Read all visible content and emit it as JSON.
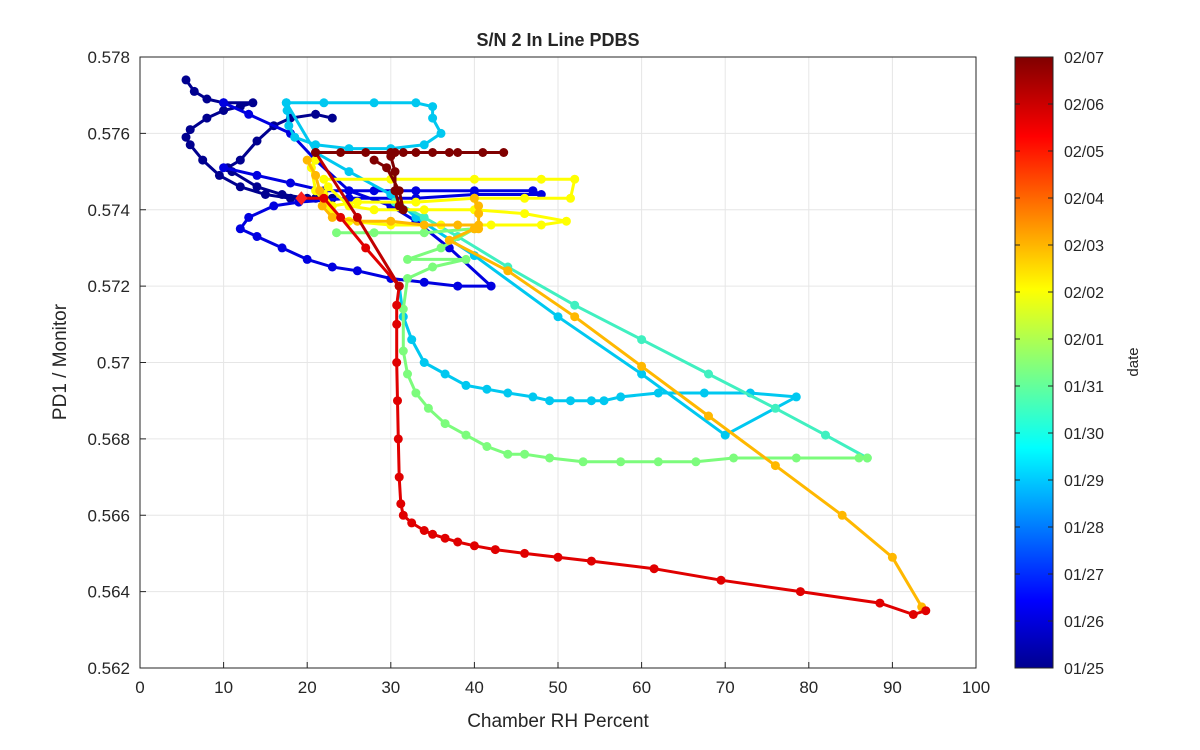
{
  "chart_data": {
    "type": "line",
    "title": "S/N 2 In Line PDBS",
    "xlabel": "Chamber RH Percent",
    "ylabel": "PD1 / Monitor",
    "xlim": [
      0,
      100
    ],
    "ylim": [
      0.562,
      0.578
    ],
    "xticks": [
      0,
      10,
      20,
      30,
      40,
      50,
      60,
      70,
      80,
      90,
      100
    ],
    "xtick_labels": [
      "0",
      "10",
      "20",
      "30",
      "40",
      "50",
      "60",
      "70",
      "80",
      "90",
      "100"
    ],
    "yticks": [
      0.562,
      0.564,
      0.566,
      0.568,
      0.57,
      0.572,
      0.574,
      0.576,
      0.578
    ],
    "ytick_labels": [
      "0.562",
      "0.564",
      "0.566",
      "0.568",
      "0.57",
      "0.572",
      "0.574",
      "0.576",
      "0.578"
    ],
    "grid": true,
    "colormap": "jet",
    "colorbar": {
      "label": "date",
      "tick_labels": [
        "01/25",
        "01/26",
        "01/27",
        "01/28",
        "01/29",
        "01/30",
        "01/31",
        "02/01",
        "02/02",
        "02/03",
        "02/04",
        "02/05",
        "02/06",
        "02/07"
      ]
    },
    "series": [
      {
        "color": "#00008F",
        "values": [
          [
            5.5,
            0.5774
          ],
          [
            6.5,
            0.5771
          ],
          [
            8,
            0.5769
          ],
          [
            10,
            0.5768
          ],
          [
            13.5,
            0.5768
          ],
          [
            12,
            0.5767
          ],
          [
            10,
            0.5766
          ],
          [
            8,
            0.5764
          ],
          [
            6,
            0.5761
          ],
          [
            5.5,
            0.5759
          ],
          [
            6,
            0.5757
          ],
          [
            7.5,
            0.5753
          ],
          [
            9.5,
            0.5749
          ],
          [
            12,
            0.5746
          ],
          [
            15,
            0.5744
          ],
          [
            18,
            0.5743
          ],
          [
            21,
            0.5743
          ],
          [
            23,
            0.5743
          ],
          [
            20,
            0.5743
          ],
          [
            17,
            0.5744
          ],
          [
            14,
            0.5746
          ],
          [
            11,
            0.575
          ],
          [
            10.5,
            0.5751
          ],
          [
            12,
            0.5753
          ],
          [
            14,
            0.5758
          ],
          [
            16,
            0.5762
          ],
          [
            18,
            0.5764
          ],
          [
            21,
            0.5765
          ],
          [
            23,
            0.5764
          ]
        ]
      },
      {
        "color": "#0000E0",
        "values": [
          [
            10,
            0.5751
          ],
          [
            14,
            0.5749
          ],
          [
            18,
            0.5747
          ],
          [
            22,
            0.5745
          ],
          [
            28,
            0.5745
          ],
          [
            33,
            0.5745
          ],
          [
            40,
            0.5745
          ],
          [
            47,
            0.5745
          ],
          [
            48,
            0.5744
          ],
          [
            40,
            0.5744
          ],
          [
            33,
            0.5743
          ],
          [
            25,
            0.5743
          ],
          [
            19,
            0.5742
          ],
          [
            16,
            0.5741
          ],
          [
            13,
            0.5738
          ],
          [
            12,
            0.5735
          ],
          [
            14,
            0.5733
          ],
          [
            17,
            0.573
          ],
          [
            20,
            0.5727
          ],
          [
            23,
            0.5725
          ],
          [
            26,
            0.5724
          ],
          [
            30,
            0.5722
          ],
          [
            34,
            0.5721
          ],
          [
            38,
            0.572
          ],
          [
            42,
            0.572
          ],
          [
            37,
            0.573
          ],
          [
            33,
            0.5737
          ],
          [
            30,
            0.5741
          ],
          [
            25,
            0.5745
          ],
          [
            21,
            0.5753
          ],
          [
            18,
            0.576
          ],
          [
            13,
            0.5765
          ],
          [
            10,
            0.5768
          ]
        ]
      },
      {
        "color": "#00C8F0",
        "values": [
          [
            17.5,
            0.5768
          ],
          [
            22,
            0.5768
          ],
          [
            28,
            0.5768
          ],
          [
            33,
            0.5768
          ],
          [
            35,
            0.5767
          ],
          [
            35,
            0.5764
          ],
          [
            36,
            0.576
          ],
          [
            34,
            0.5757
          ],
          [
            30,
            0.5756
          ],
          [
            25,
            0.5756
          ],
          [
            21,
            0.5757
          ],
          [
            18.5,
            0.5759
          ],
          [
            17.8,
            0.5762
          ],
          [
            17.6,
            0.5766
          ],
          [
            17.5,
            0.5768
          ],
          [
            21,
            0.5755
          ],
          [
            25,
            0.575
          ],
          [
            30,
            0.5744
          ],
          [
            33,
            0.5738
          ],
          [
            40,
            0.5728
          ],
          [
            50,
            0.5712
          ],
          [
            60,
            0.5697
          ],
          [
            70,
            0.5681
          ],
          [
            78.5,
            0.5691
          ],
          [
            73,
            0.5692
          ],
          [
            67.5,
            0.5692
          ],
          [
            62,
            0.5692
          ],
          [
            57.5,
            0.5691
          ],
          [
            55.5,
            0.569
          ],
          [
            54,
            0.569
          ],
          [
            51.5,
            0.569
          ],
          [
            49,
            0.569
          ],
          [
            47,
            0.5691
          ],
          [
            44,
            0.5692
          ],
          [
            41.5,
            0.5693
          ],
          [
            39,
            0.5694
          ],
          [
            36.5,
            0.5697
          ],
          [
            34,
            0.57
          ],
          [
            32.5,
            0.5706
          ],
          [
            31.5,
            0.5712
          ],
          [
            31,
            0.572
          ]
        ]
      },
      {
        "color": "#40F0C0",
        "values": [
          [
            30.5,
            0.5742
          ],
          [
            34,
            0.5738
          ],
          [
            38,
            0.5733
          ],
          [
            44,
            0.5725
          ],
          [
            52,
            0.5715
          ],
          [
            60,
            0.5706
          ],
          [
            68,
            0.5697
          ],
          [
            76,
            0.5688
          ],
          [
            82,
            0.5681
          ],
          [
            87,
            0.5675
          ]
        ]
      },
      {
        "color": "#7CFC7C",
        "values": [
          [
            23.5,
            0.5734
          ],
          [
            28,
            0.5734
          ],
          [
            34,
            0.5734
          ],
          [
            40,
            0.5735
          ],
          [
            36,
            0.573
          ],
          [
            32,
            0.5727
          ],
          [
            39,
            0.5727
          ],
          [
            35,
            0.5725
          ],
          [
            32,
            0.5722
          ],
          [
            31.5,
            0.5714
          ],
          [
            31.5,
            0.5703
          ],
          [
            32,
            0.5697
          ],
          [
            33,
            0.5692
          ],
          [
            34.5,
            0.5688
          ],
          [
            36.5,
            0.5684
          ],
          [
            39,
            0.5681
          ],
          [
            41.5,
            0.5678
          ],
          [
            44,
            0.5676
          ],
          [
            46,
            0.5676
          ],
          [
            49,
            0.5675
          ],
          [
            53,
            0.5674
          ],
          [
            57.5,
            0.5674
          ],
          [
            62,
            0.5674
          ],
          [
            66.5,
            0.5674
          ],
          [
            71,
            0.5675
          ],
          [
            78.5,
            0.5675
          ],
          [
            86,
            0.5675
          ],
          [
            87,
            0.5675
          ]
        ]
      },
      {
        "color": "#FFFF00",
        "values": [
          [
            22,
            0.5748
          ],
          [
            30,
            0.5748
          ],
          [
            40,
            0.5748
          ],
          [
            48,
            0.5748
          ],
          [
            52,
            0.5748
          ],
          [
            51.5,
            0.5743
          ],
          [
            46,
            0.5743
          ],
          [
            40,
            0.5743
          ],
          [
            33,
            0.5742
          ],
          [
            26,
            0.5742
          ],
          [
            23,
            0.5741
          ],
          [
            22,
            0.5744
          ],
          [
            22.5,
            0.5746
          ],
          [
            25,
            0.5741
          ],
          [
            28,
            0.574
          ],
          [
            34,
            0.574
          ],
          [
            40,
            0.574
          ],
          [
            46,
            0.5739
          ],
          [
            51,
            0.5737
          ],
          [
            48,
            0.5736
          ],
          [
            42,
            0.5736
          ],
          [
            36,
            0.5736
          ],
          [
            30,
            0.5736
          ],
          [
            25,
            0.5737
          ],
          [
            23,
            0.5739
          ],
          [
            21,
            0.5745
          ],
          [
            20.5,
            0.5751
          ],
          [
            21,
            0.5753
          ]
        ]
      },
      {
        "color": "#FFB800",
        "values": [
          [
            20,
            0.5753
          ],
          [
            21,
            0.5749
          ],
          [
            21.5,
            0.5745
          ],
          [
            21.8,
            0.5741
          ],
          [
            23,
            0.5738
          ],
          [
            26,
            0.5737
          ],
          [
            30,
            0.5737
          ],
          [
            34,
            0.5736
          ],
          [
            38,
            0.5736
          ],
          [
            40.5,
            0.5736
          ],
          [
            40.5,
            0.5741
          ],
          [
            40,
            0.5743
          ],
          [
            40.5,
            0.5739
          ],
          [
            40.5,
            0.5735
          ],
          [
            40,
            0.5735
          ],
          [
            37,
            0.5732
          ],
          [
            44,
            0.5724
          ],
          [
            52,
            0.5712
          ],
          [
            60,
            0.5699
          ],
          [
            68,
            0.5686
          ],
          [
            76,
            0.5673
          ],
          [
            84,
            0.566
          ],
          [
            90,
            0.5649
          ],
          [
            93.5,
            0.5636
          ]
        ]
      },
      {
        "color": "#E00000",
        "values": [
          [
            19.3,
            0.5743
          ],
          [
            22,
            0.5743
          ],
          [
            24,
            0.5738
          ],
          [
            27,
            0.573
          ],
          [
            31,
            0.572
          ],
          [
            30.7,
            0.5715
          ],
          [
            30.7,
            0.571
          ],
          [
            30.7,
            0.57
          ],
          [
            30.8,
            0.569
          ],
          [
            30.9,
            0.568
          ],
          [
            31,
            0.567
          ],
          [
            31.2,
            0.5663
          ],
          [
            31.5,
            0.566
          ],
          [
            32.5,
            0.5658
          ],
          [
            34,
            0.5656
          ],
          [
            35,
            0.5655
          ],
          [
            36.5,
            0.5654
          ],
          [
            38,
            0.5653
          ],
          [
            40,
            0.5652
          ],
          [
            42.5,
            0.5651
          ],
          [
            46,
            0.565
          ],
          [
            50,
            0.5649
          ],
          [
            54,
            0.5648
          ],
          [
            61.5,
            0.5646
          ],
          [
            69.5,
            0.5643
          ],
          [
            79,
            0.564
          ],
          [
            88.5,
            0.5637
          ],
          [
            92.5,
            0.5634
          ],
          [
            94,
            0.5635
          ]
        ]
      },
      {
        "color": "#C00000",
        "values": [
          [
            31,
            0.572
          ],
          [
            26,
            0.5738
          ],
          [
            21,
            0.5755
          ]
        ]
      },
      {
        "color": "#800000",
        "values": [
          [
            21,
            0.5755
          ],
          [
            24,
            0.5755
          ],
          [
            27,
            0.5755
          ],
          [
            30,
            0.5755
          ],
          [
            33,
            0.5755
          ],
          [
            37,
            0.5755
          ],
          [
            41,
            0.5755
          ],
          [
            43.5,
            0.5755
          ],
          [
            38,
            0.5755
          ],
          [
            35,
            0.5755
          ],
          [
            31.5,
            0.5755
          ],
          [
            30.5,
            0.5755
          ],
          [
            30,
            0.5754
          ],
          [
            30.5,
            0.575
          ],
          [
            30.5,
            0.5745
          ],
          [
            31,
            0.5741
          ],
          [
            31.5,
            0.574
          ],
          [
            31,
            0.5745
          ],
          [
            29.5,
            0.5751
          ],
          [
            28,
            0.5753
          ]
        ]
      }
    ]
  }
}
